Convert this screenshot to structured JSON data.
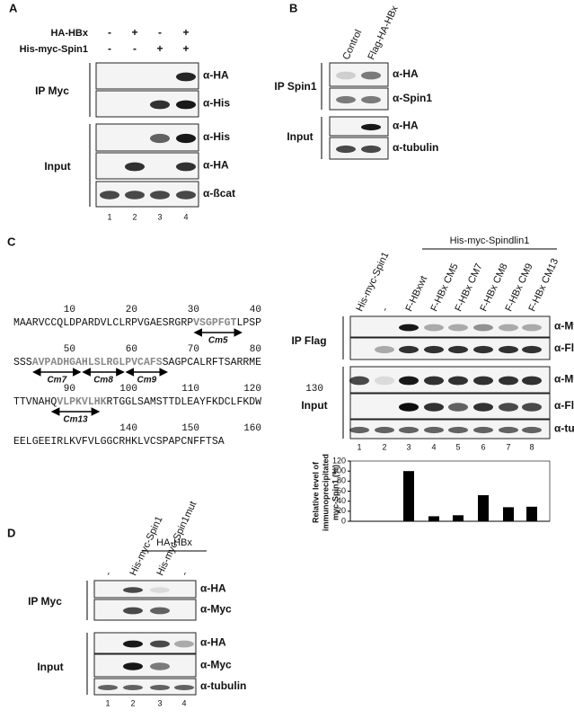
{
  "panels": {
    "A": {
      "label": "A",
      "rows": [
        {
          "name": "HA-HBx",
          "signs": [
            "-",
            "+",
            "-",
            "+"
          ]
        },
        {
          "name": "His-myc-Spin1",
          "signs": [
            "-",
            "-",
            "+",
            "+"
          ]
        }
      ],
      "groups": [
        {
          "name": "IP Myc",
          "blots": [
            "α-HA",
            "α-His"
          ]
        },
        {
          "name": "Input",
          "blots": [
            "α-His",
            "α-HA",
            "α-ßcat"
          ]
        }
      ],
      "lanes": [
        1,
        2,
        3,
        4
      ]
    },
    "B": {
      "label": "B",
      "columns": [
        "Control",
        "Flag-HA-HBx"
      ],
      "groups": [
        {
          "name": "IP Spin1",
          "blots": [
            "α-HA",
            "α-Spin1"
          ]
        },
        {
          "name": "Input",
          "blots": [
            "α-HA",
            "α-tubulin"
          ]
        }
      ]
    },
    "C": {
      "label": "C",
      "sequence": [
        {
          "positions": [
            10,
            20,
            30,
            40
          ],
          "segments": [
            "MAARVCCQLDPARDVLCLRPVGAESRGRP",
            "VSGPFGT",
            "LPSP"
          ]
        },
        {
          "positions": [
            50,
            60,
            70,
            80
          ],
          "segments": [
            "SSS",
            "AVPADHGAHLSLRGLPVCAFS",
            "SAGPCALRFTSARRME"
          ]
        },
        {
          "positions": [
            90,
            100,
            110,
            120,
            130
          ],
          "segments": [
            "TTVNAHQ",
            "VLPKVLHK",
            "RTGGLSAMSTTDLEAYFKDCLFKDW"
          ]
        },
        {
          "positions": [
            140,
            150,
            160
          ],
          "segments": [
            "EELGEEIRLKVFVLGGCRHKLVCSPAPCNFFTSA"
          ]
        }
      ],
      "motifs": [
        "Cm5",
        "Cm7",
        "Cm8",
        "Cm9",
        "Cm13"
      ],
      "header": "His-myc-Spindlin1",
      "columns": [
        "His-myc-Spin1",
        "-",
        "F-HBxwt",
        "F-HBx CM5",
        "F-HBx CM7",
        "F-HBx CM8",
        "F-HBx CM9",
        "F-HBx CM13"
      ],
      "groups": [
        {
          "name": "IP Flag",
          "blots": [
            "α-Myc",
            "α-Flag"
          ]
        },
        {
          "name": "Input",
          "blots": [
            "α-Myc",
            "α-Flag",
            "α-tubulin"
          ]
        }
      ],
      "lanes": [
        1,
        2,
        3,
        4,
        5,
        6,
        7,
        8
      ]
    },
    "D": {
      "label": "D",
      "header": "HA-HBx",
      "columns": [
        "-",
        "His-myc-Spin1",
        "His-myc-Spin1mut",
        "-"
      ],
      "groups": [
        {
          "name": "IP Myc",
          "blots": [
            "α-HA",
            "α-Myc"
          ]
        },
        {
          "name": "Input",
          "blots": [
            "α-HA",
            "α-Myc",
            "α-tubulin"
          ]
        }
      ],
      "lanes": [
        1,
        2,
        3,
        4
      ]
    }
  },
  "chart_data": {
    "type": "bar",
    "y_label": [
      "Relative level of",
      "immunoprecipitated",
      "myc-Spin1 (%)"
    ],
    "categories": [
      null,
      null,
      null,
      null,
      null,
      null,
      null,
      null
    ],
    "values": [
      null,
      null,
      100,
      10,
      12,
      52,
      28,
      29
    ],
    "color": "#000000",
    "ylim": [
      0,
      120
    ],
    "yticks": [
      0,
      20,
      40,
      60,
      80,
      100,
      120
    ]
  }
}
